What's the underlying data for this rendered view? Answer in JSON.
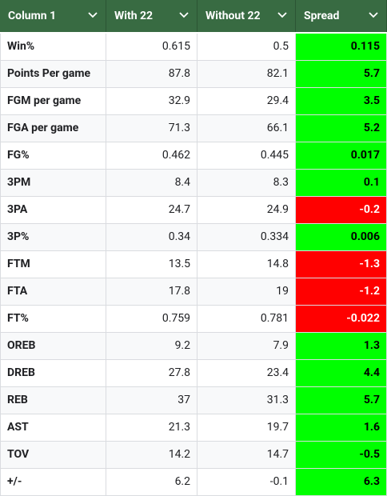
{
  "table": {
    "header": [
      "Column 1",
      "With 22",
      "Without 22",
      "Spread"
    ],
    "rows": [
      [
        "Win%",
        "0.615",
        "0.5",
        "0.115"
      ],
      [
        "Points Per game",
        "87.8",
        "82.1",
        "5.7"
      ],
      [
        "FGM per game",
        "32.9",
        "29.4",
        "3.5"
      ],
      [
        "FGA per game",
        "71.3",
        "66.1",
        "5.2"
      ],
      [
        "FG%",
        "0.462",
        "0.445",
        "0.017"
      ],
      [
        "3PM",
        "8.4",
        "8.3",
        "0.1"
      ],
      [
        "3PA",
        "24.7",
        "24.9",
        "-0.2"
      ],
      [
        "3P%",
        "0.34",
        "0.334",
        "0.006"
      ],
      [
        "FTM",
        "13.5",
        "14.8",
        "-1.3"
      ],
      [
        "FTA",
        "17.8",
        "19",
        "-1.2"
      ],
      [
        "FT%",
        "0.759",
        "0.781",
        "-0.022"
      ],
      [
        "OREB",
        "9.2",
        "7.9",
        "1.3"
      ],
      [
        "DREB",
        "27.8",
        "23.4",
        "4.4"
      ],
      [
        "REB",
        "37",
        "31.3",
        "5.7"
      ],
      [
        "AST",
        "21.3",
        "19.7",
        "1.6"
      ],
      [
        "TOV",
        "14.2",
        "14.7",
        "-0.5"
      ],
      [
        "+/-",
        "6.2",
        "-0.1",
        "6.3"
      ]
    ],
    "spread_colors": [
      "#00ff00",
      "#00ff00",
      "#00ff00",
      "#00ff00",
      "#00ff00",
      "#00ff00",
      "#ff0000",
      "#00ff00",
      "#ff0000",
      "#ff0000",
      "#ff0000",
      "#00ff00",
      "#00ff00",
      "#00ff00",
      "#00ff00",
      "#00ff00",
      "#00ff00"
    ]
  }
}
